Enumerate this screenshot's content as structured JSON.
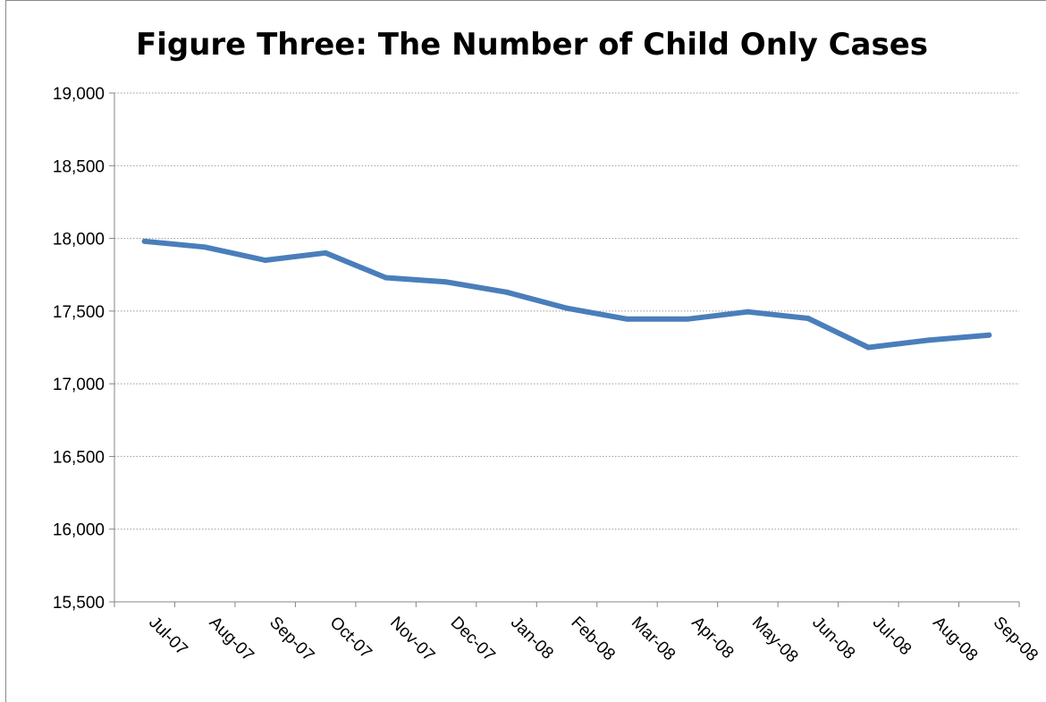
{
  "chart_data": {
    "type": "line",
    "title": "Figure Three: The Number of Child Only Cases",
    "xlabel": "",
    "ylabel": "",
    "categories": [
      "Jul-07",
      "Aug-07",
      "Sep-07",
      "Oct-07",
      "Nov-07",
      "Dec-07",
      "Jan-08",
      "Feb-08",
      "Mar-08",
      "Apr-08",
      "May-08",
      "Jun-08",
      "Jul-08",
      "Aug-08",
      "Sep-08"
    ],
    "series": [
      {
        "values": [
          17980,
          17940,
          17850,
          17900,
          17730,
          17700,
          17630,
          17520,
          17445,
          17445,
          17495,
          17450,
          17250,
          17300,
          17335
        ]
      }
    ],
    "ylim": [
      15500,
      19000
    ],
    "yticks": [
      15500,
      16000,
      16500,
      17000,
      17500,
      18000,
      18500,
      19000
    ],
    "ytick_labels": [
      "15,500",
      "16,000",
      "16,500",
      "17,000",
      "17,500",
      "18,000",
      "18,500",
      "19,000"
    ],
    "grid": true,
    "legend": "none",
    "colors": {
      "line": "#4a7ebb",
      "grid": "#9a9a9a",
      "axis": "#868686"
    }
  }
}
